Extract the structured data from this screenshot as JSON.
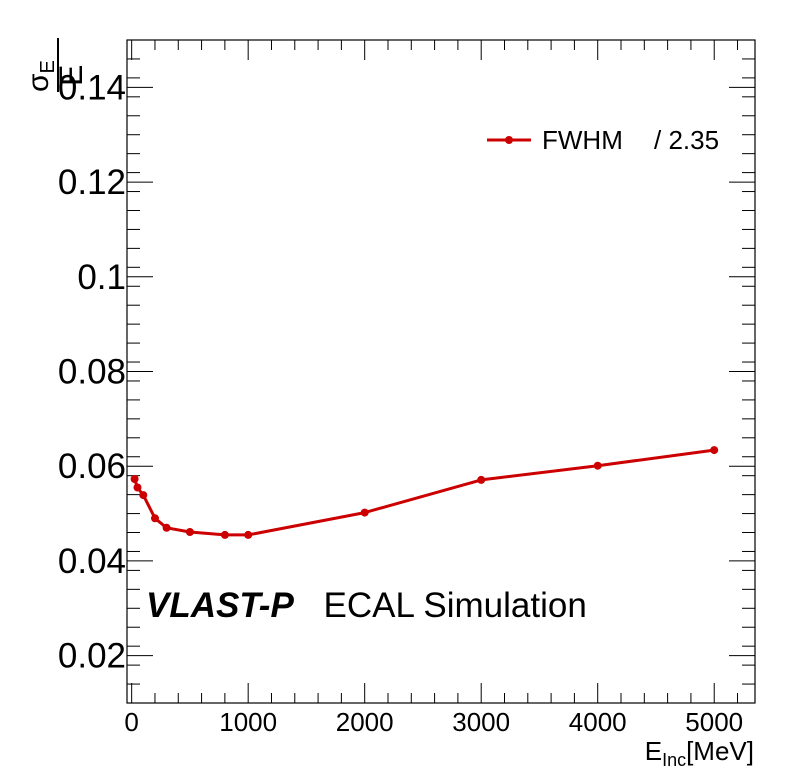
{
  "chart_data": {
    "type": "line",
    "title": "",
    "x": [
      25,
      50,
      100,
      200,
      300,
      500,
      800,
      1000,
      2000,
      3000,
      4000,
      5000
    ],
    "series": [
      {
        "name": "FWHM / 2.35",
        "legend_main": "FWHM",
        "legend_suffix": "/ 2.35",
        "color": "#cc0000",
        "values": [
          0.0573,
          0.0555,
          0.0539,
          0.049,
          0.047,
          0.0461,
          0.0455,
          0.0455,
          0.0502,
          0.0571,
          0.0601,
          0.0634
        ]
      }
    ],
    "xlim": [
      -40,
      5350
    ],
    "ylim": [
      0.01,
      0.15
    ],
    "x_ticks": [
      0,
      1000,
      2000,
      3000,
      4000,
      5000
    ],
    "x_tick_labels": [
      "0",
      "1000",
      "2000",
      "3000",
      "4000",
      "5000"
    ],
    "y_ticks": [
      0.02,
      0.04,
      0.06,
      0.08,
      0.1,
      0.12,
      0.14
    ],
    "y_tick_labels": [
      "0.02",
      "0.04",
      "0.06",
      "0.08",
      "0.1",
      "0.12",
      "0.14"
    ],
    "xlabel": {
      "main": "E",
      "sub": "Inc",
      "unit": "[MeV]"
    },
    "ylabel": {
      "numerator": "σ",
      "numerator_sub": "E",
      "denominator": "E"
    },
    "annotation": {
      "bold": "VLAST-P",
      "normal": "ECAL Simulation"
    },
    "legend_position": "top-right",
    "grid": false
  }
}
